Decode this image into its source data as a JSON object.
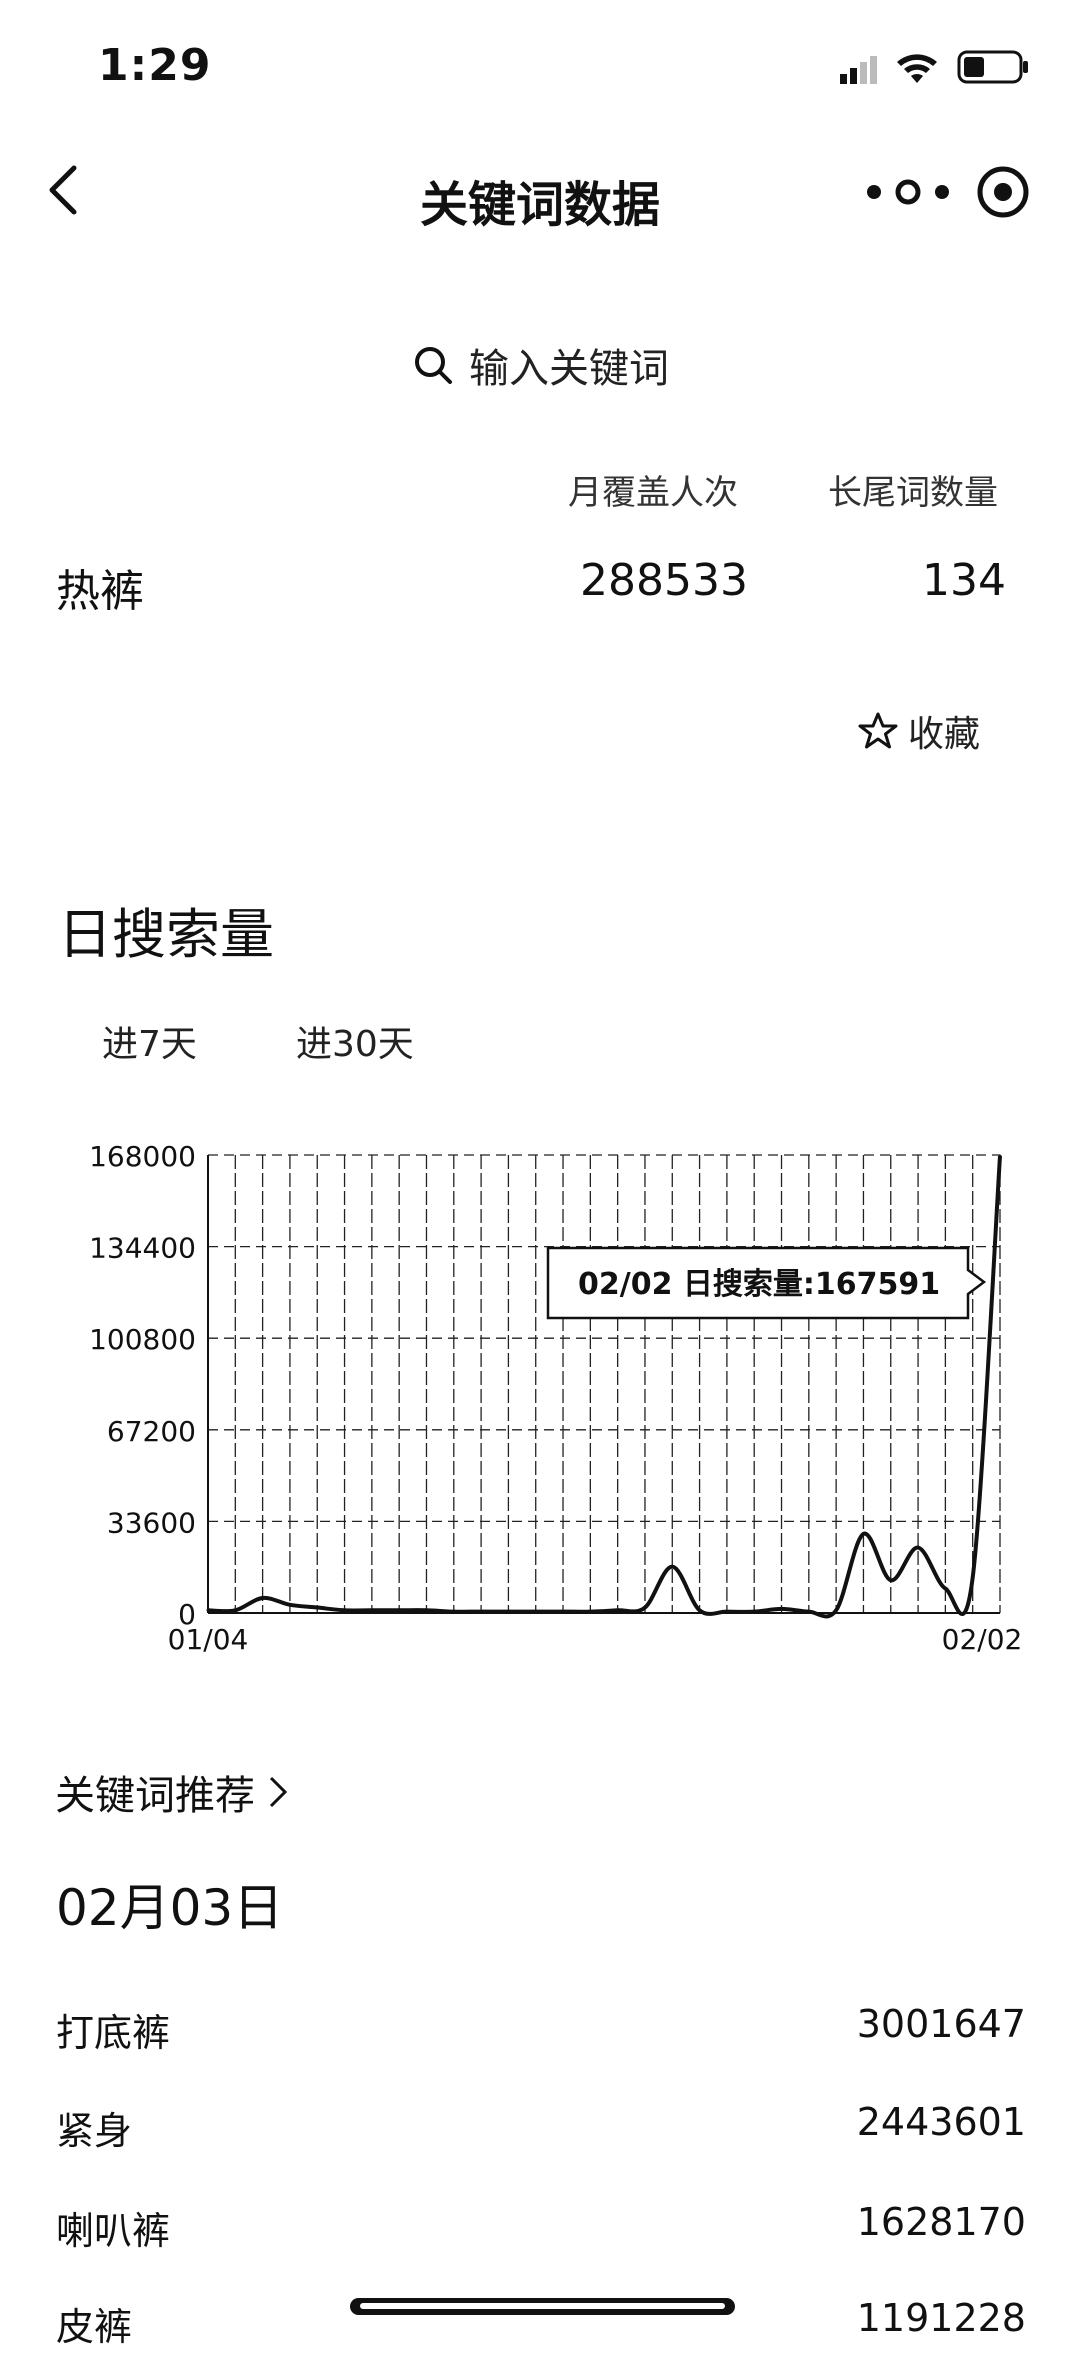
{
  "status_bar": {
    "time": "1:29"
  },
  "nav": {
    "title": "关键词数据"
  },
  "search": {
    "placeholder": "输入关键词"
  },
  "columns": {
    "monthly_reach": "月覆盖人次",
    "long_tail": "长尾词数量"
  },
  "keyword": {
    "name": "热裤",
    "monthly_reach": "288533",
    "long_tail_count": "134"
  },
  "favorite_label": "收藏",
  "daily": {
    "title": "日搜索量",
    "tabs": [
      "进7天",
      "进30天"
    ]
  },
  "chart_data": {
    "type": "line",
    "title": "日搜索量",
    "x_start_label": "01/04",
    "x_end_label": "02/02",
    "y_ticks": [
      "168000",
      "134400",
      "100800",
      "67200",
      "33600",
      "0"
    ],
    "ylim": [
      0,
      168000
    ],
    "grid": true,
    "tooltip": "02/02 日搜索量:167591",
    "x": [
      "01/04",
      "01/05",
      "01/06",
      "01/07",
      "01/08",
      "01/09",
      "01/10",
      "01/11",
      "01/12",
      "01/13",
      "01/14",
      "01/15",
      "01/16",
      "01/17",
      "01/18",
      "01/19",
      "01/20",
      "01/21",
      "01/22",
      "01/23",
      "01/24",
      "01/25",
      "01/26",
      "01/27",
      "01/28",
      "01/29",
      "01/30",
      "01/31",
      "02/01",
      "02/02"
    ],
    "values": [
      1000,
      1000,
      5500,
      3000,
      2000,
      1000,
      1000,
      1000,
      1000,
      500,
      500,
      500,
      500,
      500,
      500,
      1000,
      2000,
      17000,
      1000,
      500,
      500,
      1500,
      500,
      1000,
      29000,
      12000,
      24000,
      9000,
      13000,
      167591
    ]
  },
  "recommend": {
    "title": "关键词推荐",
    "date": "02月03日",
    "items": [
      {
        "name": "打底裤",
        "value": "3001647"
      },
      {
        "name": "紧身",
        "value": "2443601"
      },
      {
        "name": "喇叭裤",
        "value": "1628170"
      },
      {
        "name": "皮裤",
        "value": "1191228"
      }
    ]
  }
}
